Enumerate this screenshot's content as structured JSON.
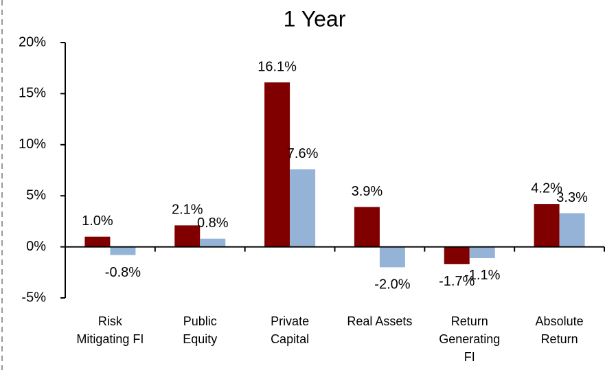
{
  "chart_data": {
    "type": "bar",
    "title": "1 Year",
    "categories": [
      "Risk Mitigating FI",
      "Public Equity",
      "Private Capital",
      "Real Assets",
      "Return Generating FI",
      "Absolute Return"
    ],
    "series": [
      {
        "color": "#800000",
        "values": [
          1.0,
          2.1,
          16.1,
          3.9,
          -1.7,
          4.2
        ],
        "value_labels": [
          "1.0%",
          "2.1%",
          "16.1%",
          "3.9%",
          "-1.7%",
          "4.2%"
        ]
      },
      {
        "color": "#95b3d7",
        "values": [
          -0.8,
          0.8,
          7.6,
          -2.0,
          -1.1,
          3.3
        ],
        "value_labels": [
          "-0.8%",
          "0.8%",
          "7.6%",
          "-2.0%",
          "-1.1%",
          "3.3%"
        ]
      }
    ],
    "ylim": [
      -5,
      20
    ],
    "yticks": [
      {
        "value": -5,
        "label": "-5%"
      },
      {
        "value": 0,
        "label": "0%"
      },
      {
        "value": 5,
        "label": "5%"
      },
      {
        "value": 10,
        "label": "10%"
      },
      {
        "value": 15,
        "label": "15%"
      },
      {
        "value": 20,
        "label": "20%"
      }
    ],
    "grid": false
  }
}
